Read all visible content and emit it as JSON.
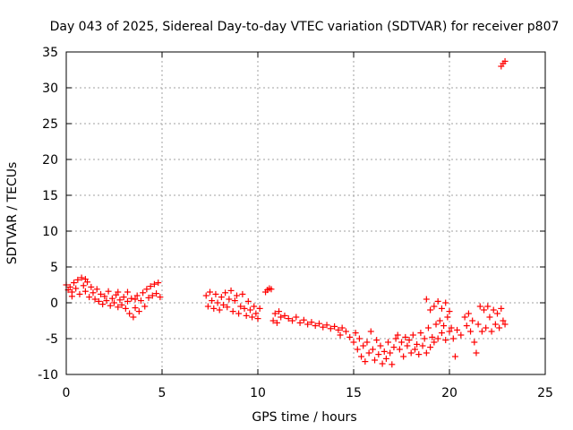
{
  "chart_data": {
    "type": "scatter",
    "title": "Day 043 of 2025, Sidereal Day-to-day VTEC variation (SDTVAR) for receiver p807",
    "xlabel": "GPS time / hours",
    "ylabel": "SDTVAR / TECUs",
    "xlim": [
      0,
      25
    ],
    "ylim": [
      -10,
      35
    ],
    "xticks": [
      0,
      5,
      10,
      15,
      20,
      25
    ],
    "yticks": [
      -10,
      -5,
      0,
      5,
      10,
      15,
      20,
      25,
      30,
      35
    ],
    "xtick_labels": [
      "0",
      "5",
      "10",
      "15",
      "20",
      "25"
    ],
    "ytick_labels": [
      "-10",
      "-5",
      "0",
      "5",
      "10",
      "15",
      "20",
      "25",
      "30",
      "35"
    ],
    "grid": true,
    "marker": "+",
    "color": "#ff0000",
    "series": [
      {
        "name": "SDTVAR",
        "points": [
          [
            0.0,
            2.5
          ],
          [
            0.1,
            1.8
          ],
          [
            0.2,
            2.2
          ],
          [
            0.3,
            1.5
          ],
          [
            0.4,
            2.8
          ],
          [
            0.5,
            2.0
          ],
          [
            0.6,
            3.2
          ],
          [
            0.7,
            1.2
          ],
          [
            0.8,
            3.5
          ],
          [
            0.9,
            2.4
          ],
          [
            1.0,
            1.6
          ],
          [
            1.1,
            2.9
          ],
          [
            1.2,
            0.8
          ],
          [
            1.3,
            2.2
          ],
          [
            1.4,
            1.4
          ],
          [
            1.5,
            0.5
          ],
          [
            1.6,
            1.9
          ],
          [
            1.7,
            0.2
          ],
          [
            1.8,
            1.2
          ],
          [
            1.9,
            -0.2
          ],
          [
            2.0,
            0.9
          ],
          [
            2.1,
            0.3
          ],
          [
            2.2,
            1.6
          ],
          [
            2.3,
            -0.4
          ],
          [
            2.4,
            0.6
          ],
          [
            2.5,
            0.0
          ],
          [
            2.6,
            1.1
          ],
          [
            2.7,
            -0.6
          ],
          [
            2.8,
            0.4
          ],
          [
            2.9,
            -0.3
          ],
          [
            3.0,
            0.8
          ],
          [
            3.1,
            -0.8
          ],
          [
            3.2,
            0.2
          ],
          [
            3.3,
            -1.5
          ],
          [
            3.4,
            0.6
          ],
          [
            3.5,
            -2.0
          ],
          [
            3.6,
            -0.7
          ],
          [
            3.7,
            1.0
          ],
          [
            3.8,
            -1.2
          ],
          [
            3.9,
            0.3
          ],
          [
            4.0,
            1.4
          ],
          [
            4.1,
            -0.5
          ],
          [
            4.2,
            1.9
          ],
          [
            4.3,
            0.7
          ],
          [
            4.4,
            2.3
          ],
          [
            4.5,
            1.0
          ],
          [
            4.6,
            2.6
          ],
          [
            4.7,
            1.3
          ],
          [
            4.8,
            2.8
          ],
          [
            4.9,
            0.8
          ],
          [
            3.2,
            1.5
          ],
          [
            3.6,
            0.5
          ],
          [
            2.7,
            1.5
          ],
          [
            1.0,
            3.3
          ],
          [
            0.3,
            0.9
          ],
          [
            7.3,
            1.0
          ],
          [
            7.4,
            -0.5
          ],
          [
            7.5,
            1.5
          ],
          [
            7.6,
            0.3
          ],
          [
            7.7,
            -0.8
          ],
          [
            7.8,
            1.2
          ],
          [
            7.9,
            0.0
          ],
          [
            8.0,
            -1.0
          ],
          [
            8.1,
            0.8
          ],
          [
            8.2,
            -0.3
          ],
          [
            8.3,
            1.4
          ],
          [
            8.4,
            -0.6
          ],
          [
            8.5,
            0.5
          ],
          [
            8.6,
            1.7
          ],
          [
            8.7,
            -1.2
          ],
          [
            8.8,
            0.3
          ],
          [
            8.9,
            1.0
          ],
          [
            9.0,
            -1.5
          ],
          [
            9.1,
            -0.5
          ],
          [
            9.2,
            1.2
          ],
          [
            9.3,
            -0.8
          ],
          [
            9.4,
            -1.8
          ],
          [
            9.5,
            0.2
          ],
          [
            9.6,
            -1.0
          ],
          [
            9.7,
            -2.0
          ],
          [
            9.8,
            -0.5
          ],
          [
            9.9,
            -1.5
          ],
          [
            10.0,
            -2.2
          ],
          [
            10.1,
            -0.8
          ],
          [
            10.4,
            1.5
          ],
          [
            10.5,
            1.8
          ],
          [
            10.6,
            2.0
          ],
          [
            10.7,
            1.9
          ],
          [
            10.8,
            -2.5
          ],
          [
            10.9,
            -1.5
          ],
          [
            11.0,
            -2.8
          ],
          [
            11.1,
            -1.2
          ],
          [
            11.2,
            -2.0
          ],
          [
            11.4,
            -1.8
          ],
          [
            11.6,
            -2.2
          ],
          [
            11.8,
            -2.5
          ],
          [
            12.0,
            -2.0
          ],
          [
            12.2,
            -2.8
          ],
          [
            12.4,
            -2.4
          ],
          [
            12.6,
            -3.0
          ],
          [
            12.8,
            -2.7
          ],
          [
            13.0,
            -3.2
          ],
          [
            13.2,
            -2.9
          ],
          [
            13.4,
            -3.4
          ],
          [
            13.6,
            -3.1
          ],
          [
            13.8,
            -3.6
          ],
          [
            14.0,
            -3.3
          ],
          [
            14.2,
            -3.8
          ],
          [
            14.3,
            -4.5
          ],
          [
            14.4,
            -3.5
          ],
          [
            14.6,
            -4.0
          ],
          [
            14.8,
            -4.8
          ],
          [
            15.0,
            -5.5
          ],
          [
            15.1,
            -4.2
          ],
          [
            15.2,
            -6.5
          ],
          [
            15.3,
            -5.0
          ],
          [
            15.4,
            -7.5
          ],
          [
            15.5,
            -6.0
          ],
          [
            15.6,
            -8.2
          ],
          [
            15.7,
            -5.5
          ],
          [
            15.8,
            -7.0
          ],
          [
            15.9,
            -4.0
          ],
          [
            16.0,
            -6.5
          ],
          [
            16.1,
            -8.0
          ],
          [
            16.2,
            -5.2
          ],
          [
            16.3,
            -7.2
          ],
          [
            16.4,
            -6.0
          ],
          [
            16.5,
            -8.5
          ],
          [
            16.6,
            -6.8
          ],
          [
            16.7,
            -7.8
          ],
          [
            16.8,
            -5.5
          ],
          [
            16.9,
            -7.0
          ],
          [
            17.0,
            -8.6
          ],
          [
            17.1,
            -6.2
          ],
          [
            17.2,
            -5.0
          ],
          [
            17.3,
            -4.5
          ],
          [
            17.4,
            -6.5
          ],
          [
            17.5,
            -5.5
          ],
          [
            17.6,
            -7.5
          ],
          [
            17.7,
            -4.8
          ],
          [
            17.8,
            -6.0
          ],
          [
            17.9,
            -5.2
          ],
          [
            18.0,
            -7.0
          ],
          [
            18.1,
            -4.5
          ],
          [
            18.2,
            -6.5
          ],
          [
            18.3,
            -5.8
          ],
          [
            18.4,
            -7.2
          ],
          [
            18.5,
            -4.2
          ],
          [
            18.6,
            -6.0
          ],
          [
            18.7,
            -5.0
          ],
          [
            18.8,
            -7.0
          ],
          [
            18.9,
            -3.5
          ],
          [
            19.0,
            -6.2
          ],
          [
            19.1,
            -4.8
          ],
          [
            19.2,
            -5.5
          ],
          [
            19.3,
            -3.0
          ],
          [
            19.4,
            -5.0
          ],
          [
            19.5,
            -2.5
          ],
          [
            19.6,
            -4.2
          ],
          [
            19.7,
            -3.2
          ],
          [
            19.8,
            -5.2
          ],
          [
            19.9,
            -2.0
          ],
          [
            20.0,
            -4.0
          ],
          [
            20.1,
            -3.5
          ],
          [
            20.2,
            -5.0
          ],
          [
            20.3,
            -7.5
          ],
          [
            20.4,
            -3.8
          ],
          [
            20.6,
            -4.5
          ],
          [
            20.8,
            -2.0
          ],
          [
            20.9,
            -3.2
          ],
          [
            21.0,
            -1.5
          ],
          [
            21.1,
            -4.0
          ],
          [
            21.2,
            -2.5
          ],
          [
            21.3,
            -5.5
          ],
          [
            21.4,
            -7.0
          ],
          [
            21.5,
            -3.0
          ],
          [
            21.6,
            -0.5
          ],
          [
            21.7,
            -4.0
          ],
          [
            21.8,
            -1.0
          ],
          [
            21.9,
            -3.5
          ],
          [
            22.0,
            -0.5
          ],
          [
            22.1,
            -2.0
          ],
          [
            22.2,
            -4.0
          ],
          [
            22.3,
            -1.0
          ],
          [
            22.4,
            -3.0
          ],
          [
            22.5,
            -1.5
          ],
          [
            22.6,
            -3.5
          ],
          [
            22.7,
            -0.8
          ],
          [
            22.8,
            -2.5
          ],
          [
            22.9,
            -3.0
          ],
          [
            18.8,
            0.5
          ],
          [
            19.0,
            -1.0
          ],
          [
            19.2,
            -0.5
          ],
          [
            19.4,
            0.2
          ],
          [
            19.6,
            -0.8
          ],
          [
            19.8,
            0.0
          ],
          [
            20.0,
            -1.2
          ],
          [
            22.7,
            33.0
          ],
          [
            22.8,
            33.4
          ],
          [
            22.9,
            33.7
          ]
        ]
      }
    ]
  }
}
